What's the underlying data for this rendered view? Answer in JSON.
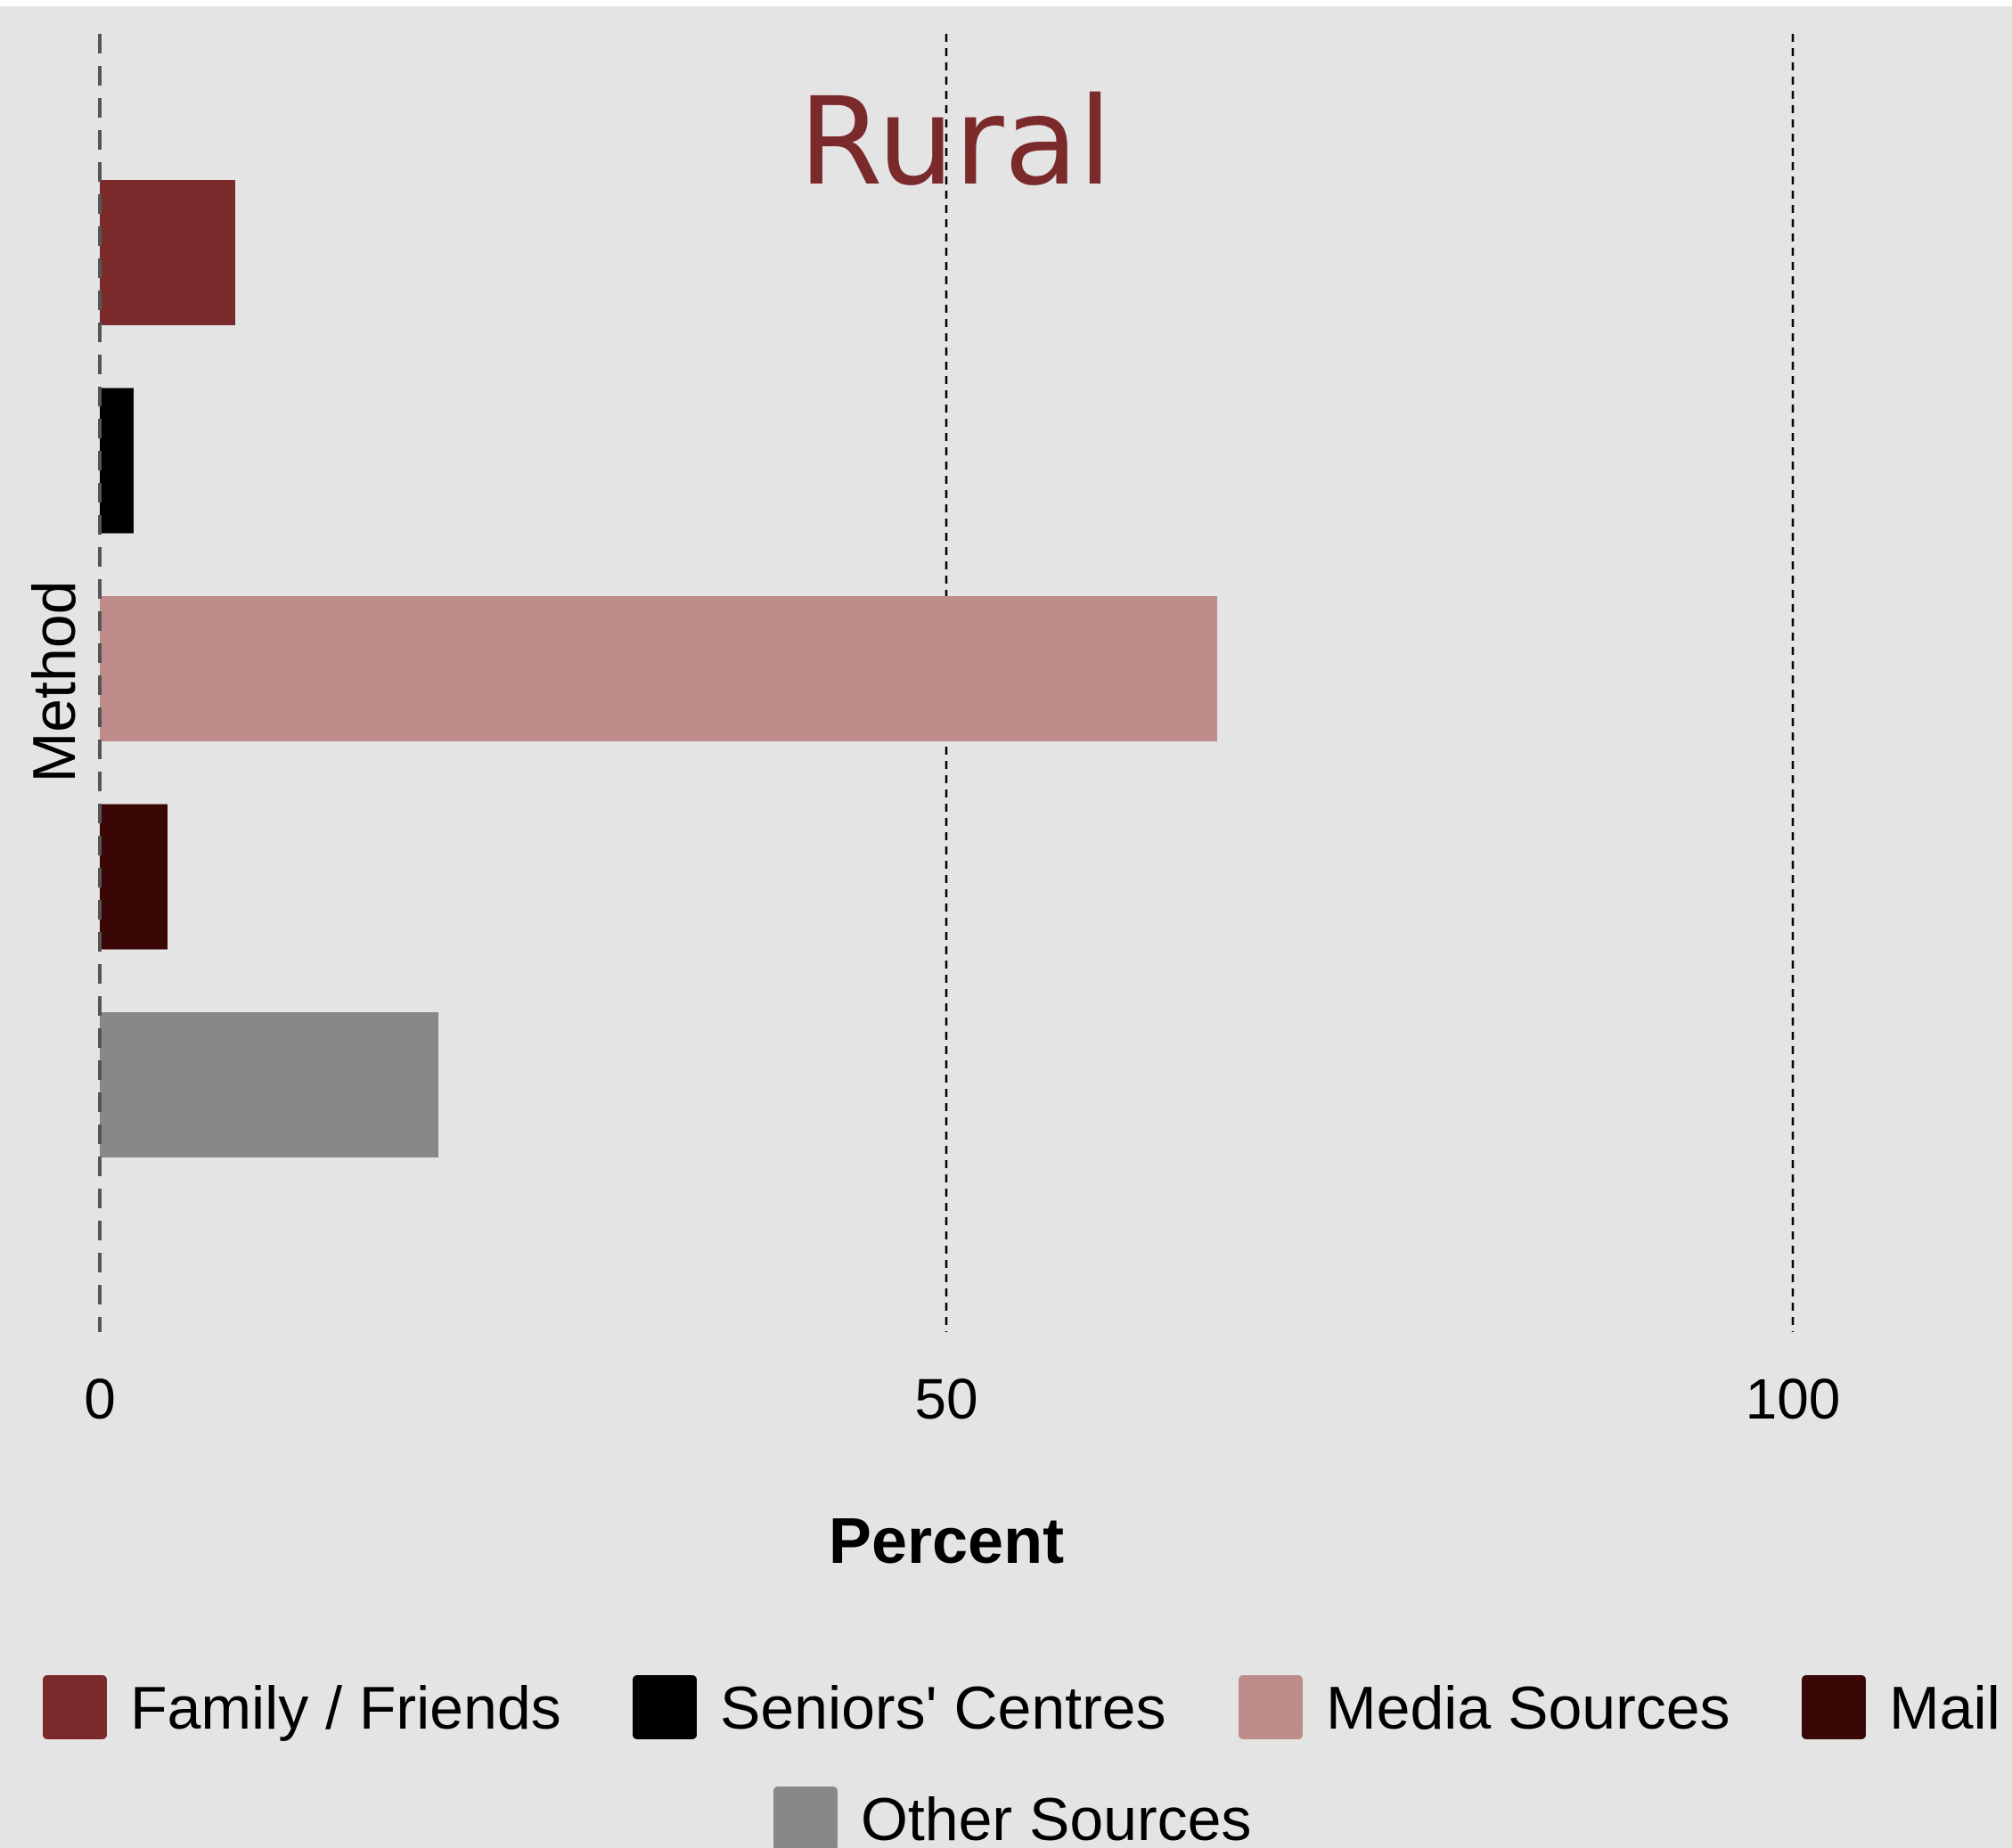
{
  "chart_data": {
    "type": "bar",
    "orientation": "horizontal",
    "title": "Rural",
    "xlabel": "Percent",
    "ylabel": "Method",
    "xlim": [
      0,
      112
    ],
    "xticks": [
      0,
      50,
      100
    ],
    "grid": "vertical dashed lines at x ticks",
    "legend_position": "bottom",
    "categories": [
      "Family / Friends",
      "Seniors' Centres",
      "Media Sources",
      "Mail",
      "Other Sources"
    ],
    "values": [
      8,
      2,
      66,
      4,
      20
    ],
    "colors": [
      "#7b2a2c",
      "#000000",
      "#c08b8b",
      "#3a0606",
      "#888888"
    ]
  }
}
